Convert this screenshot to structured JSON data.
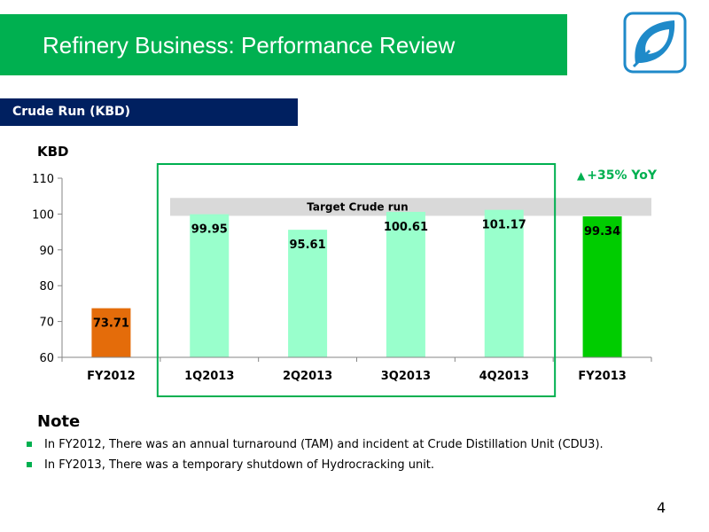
{
  "slide": {
    "title": "Refinery Business: Performance Review",
    "section_label": "Crude Run (KBD)",
    "y_axis_label": "KBD",
    "yoy_text": "+35% YoY",
    "page_number": "4",
    "colors": {
      "brand_green": "#00b050",
      "navy": "#002060"
    }
  },
  "chart_data": {
    "type": "bar",
    "categories": [
      "FY2012",
      "1Q2013",
      "2Q2013",
      "3Q2013",
      "4Q2013",
      "FY2013"
    ],
    "values": [
      73.71,
      99.95,
      95.61,
      100.61,
      101.17,
      99.34
    ],
    "value_labels": [
      "73.71",
      "99.95",
      "95.61",
      "100.61",
      "101.17",
      "99.34"
    ],
    "bar_colors": [
      "#e46c0a",
      "#99ffcc",
      "#99ffcc",
      "#99ffcc",
      "#99ffcc",
      "#00cc00"
    ],
    "ylim": [
      60,
      110
    ],
    "yticks": [
      60,
      70,
      80,
      90,
      100,
      110
    ],
    "target_band": {
      "label": "Target Crude run",
      "from": 99.5,
      "to": 104.5
    },
    "highlight_box": {
      "from_category": "1Q2013",
      "to_category": "FY2013"
    }
  },
  "notes": {
    "heading": "Note",
    "items": [
      "In FY2012, There was an annual turnaround (TAM) and incident at Crude Distillation Unit (CDU3).",
      "In FY2013, There was a temporary shutdown of Hydrocracking unit."
    ]
  }
}
